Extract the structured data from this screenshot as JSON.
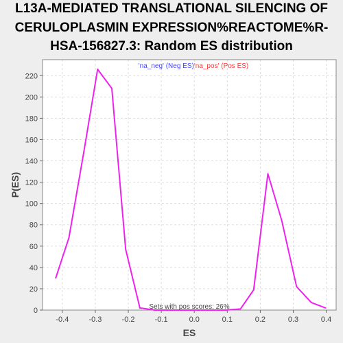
{
  "chart_data": {
    "type": "line",
    "title_lines": [
      "L13A-MEDIATED TRANSLATIONAL SILENCING OF",
      "CERULOPLASMIN EXPRESSION%REACTOME%R-",
      "HSA-156827.3: Random ES distribution"
    ],
    "xlabel": "ES",
    "ylabel": "P(ES)",
    "xlim": [
      -0.46,
      0.43
    ],
    "ylim": [
      0,
      235
    ],
    "xticks": [
      -0.4,
      -0.3,
      -0.2,
      -0.1,
      0.0,
      0.1,
      0.2,
      0.3,
      0.4
    ],
    "xtick_labels": [
      "-0.4",
      "-0.3",
      "-0.2",
      "-0.1",
      "0.0",
      "0.1",
      "0.2",
      "0.3",
      "0.4"
    ],
    "yticks": [
      0,
      20,
      40,
      60,
      80,
      100,
      120,
      140,
      160,
      180,
      200,
      220
    ],
    "ytick_labels": [
      "0",
      "20",
      "40",
      "60",
      "80",
      "100",
      "120",
      "140",
      "160",
      "180",
      "200",
      "220"
    ],
    "grid": true,
    "legend": {
      "placement": "top-center",
      "entries": [
        {
          "label": "'na_neg' (Neg ES)",
          "color": "#4444ff"
        },
        {
          "label": "'na_pos' (Pos ES)",
          "color": "#ff3333"
        }
      ]
    },
    "annotation": "Sets with pos scores: 26%",
    "series": [
      {
        "color": "#ee22ee",
        "x": [
          -0.42,
          -0.38,
          -0.335,
          -0.293,
          -0.25,
          -0.208,
          -0.165,
          -0.12,
          -0.08,
          0.0,
          0.05,
          0.095,
          0.14,
          0.18,
          0.223,
          0.265,
          0.31,
          0.355,
          0.398
        ],
        "y": [
          30,
          68,
          148,
          226,
          208,
          57,
          2,
          0,
          0,
          0,
          0,
          0,
          1,
          19,
          128,
          84,
          22,
          7,
          2
        ]
      }
    ]
  }
}
